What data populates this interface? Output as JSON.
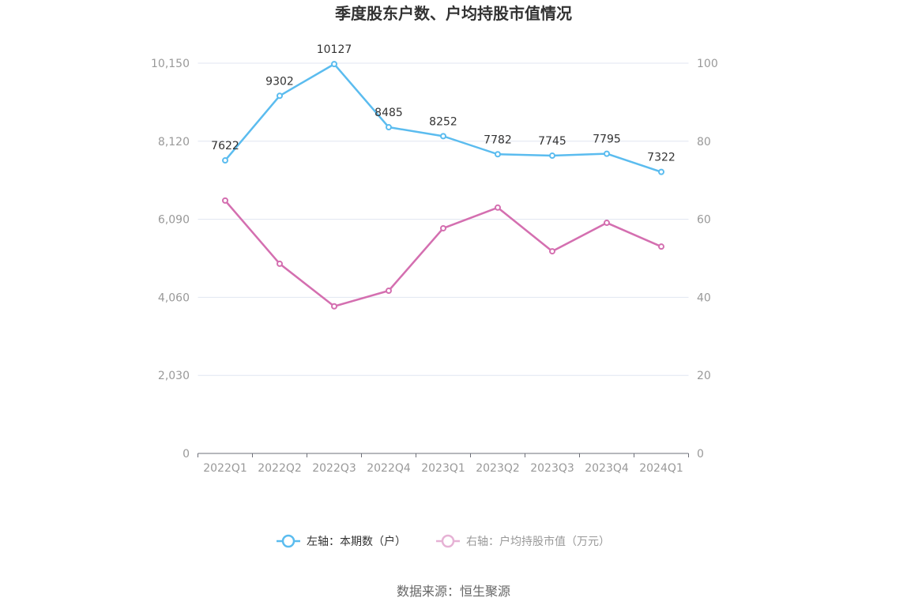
{
  "chart_data": {
    "type": "line",
    "title": "季度股东户数、户均持股市值情况",
    "categories": [
      "2022Q1",
      "2022Q2",
      "2022Q3",
      "2022Q4",
      "2023Q1",
      "2023Q2",
      "2023Q3",
      "2023Q4",
      "2024Q1"
    ],
    "left_axis": {
      "ticks": [
        "0",
        "2,030",
        "4,060",
        "6,090",
        "8,120",
        "10,150"
      ],
      "range": [
        0,
        10150
      ]
    },
    "right_axis": {
      "ticks": [
        "0",
        "20",
        "40",
        "60",
        "80",
        "100"
      ],
      "range": [
        0,
        100
      ]
    },
    "grid": true,
    "legend_position": "bottom",
    "series": [
      {
        "name": "左轴：本期数（户）",
        "axis": "left",
        "color": "#5bbcef",
        "values": [
          7622,
          9302,
          10127,
          8485,
          8252,
          7782,
          7745,
          7795,
          7322
        ],
        "labels": [
          "7622",
          "9302",
          "10127",
          "8485",
          "8252",
          "7782",
          "7745",
          "7795",
          "7322"
        ]
      },
      {
        "name": "右轴：户均持股市值（万元）",
        "axis": "right",
        "color": "#d46fb0",
        "values": [
          64.8,
          48.6,
          37.7,
          41.7,
          57.7,
          63.0,
          51.8,
          59.1,
          53.0
        ]
      }
    ]
  },
  "source": "数据来源：恒生聚源"
}
